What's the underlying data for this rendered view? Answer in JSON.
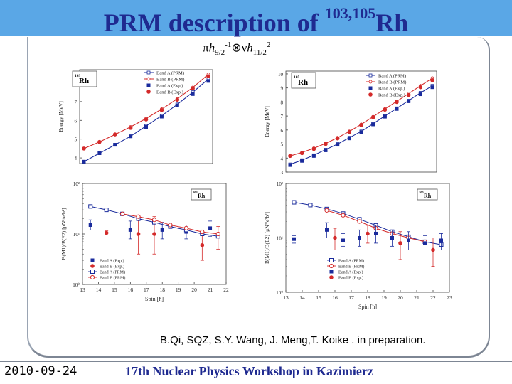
{
  "slide": {
    "title_main": "PRM description of ",
    "title_sup": "103,105",
    "title_end": "Rh",
    "formula": {
      "pi": "π",
      "h1": "h",
      "sub1": "9/2",
      "sup1": "-1",
      "otimes": "⊗",
      "nu": "ν",
      "h2": "h",
      "sub2": "11/2",
      "sup2": "2"
    },
    "citation": "B.Qi, SQZ, S.Y. Wang, J. Meng,T. Koike . in preparation.",
    "date": "2010-09-24",
    "footer": "17th Nuclear Physics Workshop in Kazimierz"
  },
  "colors": {
    "band_a": "#1a2b9c",
    "band_b": "#d42a2a",
    "title": "#1f2a90",
    "topbar": "#5aa7e6"
  },
  "chart_data": [
    {
      "type": "line",
      "nucleus_mass": "103",
      "nucleus": "Rh",
      "xlabel": "",
      "ylabel": "Energy [MeV]",
      "ylim": [
        3.7,
        8.7
      ],
      "yticks": [
        4,
        5,
        6,
        7,
        8
      ],
      "x": [
        1,
        2,
        3,
        4,
        5,
        6,
        7,
        8,
        9
      ],
      "legend": [
        "Band A (PRM)",
        "Band B (PRM)",
        "Band A (Exp.)",
        "Band B (Exp.)"
      ],
      "legend_position": "top-right",
      "series": [
        {
          "name": "Band A (PRM)",
          "kind": "line",
          "color": "#1a2b9c",
          "values": [
            3.8,
            4.25,
            4.7,
            5.15,
            5.7,
            6.25,
            6.85,
            7.5,
            8.2
          ]
        },
        {
          "name": "Band B (PRM)",
          "kind": "line",
          "color": "#d42a2a",
          "values": [
            4.5,
            4.85,
            5.25,
            5.65,
            6.1,
            6.6,
            7.15,
            7.75,
            8.45
          ]
        },
        {
          "name": "Band A (Exp.)",
          "kind": "square",
          "color": "#1a2b9c",
          "values": [
            3.8,
            4.25,
            4.7,
            5.15,
            5.65,
            6.2,
            6.8,
            7.4,
            8.1
          ]
        },
        {
          "name": "Band B (Exp.)",
          "kind": "circle",
          "color": "#d42a2a",
          "values": [
            4.5,
            4.85,
            5.25,
            5.6,
            6.05,
            6.55,
            7.1,
            7.7,
            8.35
          ]
        }
      ]
    },
    {
      "type": "line",
      "nucleus_mass": "105",
      "nucleus": "Rh",
      "xlabel": "",
      "ylabel": "Energy [MeV]",
      "ylim": [
        3,
        10.2
      ],
      "yticks": [
        3,
        4,
        5,
        6,
        7,
        8,
        9,
        10
      ],
      "x": [
        1,
        2,
        3,
        4,
        5,
        6,
        7,
        8,
        9,
        10,
        11,
        12,
        13
      ],
      "legend": [
        "Band A (PRM)",
        "Band B (PRM)",
        "Band A (Exp.)",
        "Band B (Exp.)"
      ],
      "legend_position": "top-right",
      "series": [
        {
          "name": "Band A (PRM)",
          "kind": "line",
          "color": "#1a2b9c",
          "values": [
            3.55,
            3.85,
            4.2,
            4.6,
            5.0,
            5.45,
            5.9,
            6.45,
            7.0,
            7.55,
            8.1,
            8.65,
            9.15
          ]
        },
        {
          "name": "Band B (PRM)",
          "kind": "line",
          "color": "#d42a2a",
          "values": [
            4.15,
            4.4,
            4.7,
            5.05,
            5.45,
            5.9,
            6.4,
            6.95,
            7.5,
            8.05,
            8.6,
            9.15,
            9.7
          ]
        },
        {
          "name": "Band A (Exp.)",
          "kind": "square",
          "color": "#1a2b9c",
          "values": [
            3.5,
            3.8,
            4.15,
            4.55,
            4.95,
            5.4,
            5.85,
            6.4,
            6.95,
            7.5,
            8.05,
            8.55,
            9.05
          ]
        },
        {
          "name": "Band B (Exp.)",
          "kind": "circle",
          "color": "#d42a2a",
          "values": [
            4.15,
            4.35,
            4.65,
            5.0,
            5.4,
            5.85,
            6.35,
            6.9,
            7.45,
            8.0,
            8.5,
            9.05,
            9.55
          ]
        }
      ]
    },
    {
      "type": "line",
      "nucleus_mass": "103",
      "nucleus": "Rh",
      "xlabel": "Spin [ħ]",
      "ylabel": "B(M1)/B(E2) [μN²/e²b²]",
      "yscale": "log",
      "ylim": [
        1,
        100
      ],
      "ytick_labels": [
        "10²",
        "10¹",
        "10⁰"
      ],
      "xlim": [
        13,
        22
      ],
      "xticks": [
        13,
        14,
        15,
        16,
        17,
        18,
        19,
        20,
        21,
        22
      ],
      "legend": [
        "Band A (Exp.)",
        "Band B (Exp.)",
        "Band A (PRM)",
        "Band B (PRM)"
      ],
      "legend_position": "bottom-left",
      "series": [
        {
          "name": "Band A (Exp.)",
          "kind": "square_err",
          "color": "#1a2b9c",
          "points": [
            {
              "x": 13.5,
              "y": 15,
              "lo": 12,
              "hi": 19
            },
            {
              "x": 16,
              "y": 12,
              "lo": 8,
              "hi": 18
            },
            {
              "x": 18,
              "y": 12,
              "lo": 8,
              "hi": 17
            },
            {
              "x": 19.5,
              "y": 11,
              "lo": 8,
              "hi": 15
            },
            {
              "x": 21,
              "y": 13,
              "lo": 9,
              "hi": 18
            }
          ]
        },
        {
          "name": "Band B (Exp.)",
          "kind": "circle_err",
          "color": "#d42a2a",
          "points": [
            {
              "x": 14.5,
              "y": 10.5,
              "lo": 9.5,
              "hi": 11.5
            },
            {
              "x": 16.5,
              "y": 10,
              "lo": 4,
              "hi": 20
            },
            {
              "x": 17.5,
              "y": 10,
              "lo": 4,
              "hi": 22
            },
            {
              "x": 20.5,
              "y": 6,
              "lo": 3,
              "hi": 12
            },
            {
              "x": 21.5,
              "y": 9,
              "lo": 5,
              "hi": 14
            }
          ]
        },
        {
          "name": "Band A (PRM)",
          "kind": "open_square_line",
          "color": "#1a2b9c",
          "points": [
            {
              "x": 13.5,
              "y": 35
            },
            {
              "x": 14.5,
              "y": 30
            },
            {
              "x": 15.5,
              "y": 25
            },
            {
              "x": 16.5,
              "y": 20
            },
            {
              "x": 17.5,
              "y": 17
            },
            {
              "x": 18.5,
              "y": 14
            },
            {
              "x": 19.5,
              "y": 12
            },
            {
              "x": 20.5,
              "y": 10
            },
            {
              "x": 21.5,
              "y": 9
            }
          ]
        },
        {
          "name": "Band B (PRM)",
          "kind": "open_circle_line",
          "color": "#d42a2a",
          "points": [
            {
              "x": 15.5,
              "y": 25
            },
            {
              "x": 16.5,
              "y": 22
            },
            {
              "x": 17.5,
              "y": 19
            },
            {
              "x": 18.5,
              "y": 15
            },
            {
              "x": 19.5,
              "y": 13
            },
            {
              "x": 20.5,
              "y": 11
            },
            {
              "x": 21.5,
              "y": 10
            }
          ]
        }
      ]
    },
    {
      "type": "line",
      "nucleus_mass": "105",
      "nucleus": "Rh",
      "xlabel": "Spin [ħ]",
      "ylabel": "B(M1)/B(E2) [μN²/e²b²]",
      "yscale": "log",
      "ylim": [
        1,
        100
      ],
      "ytick_labels": [
        "10²",
        "10¹",
        "10⁰"
      ],
      "xlim": [
        13,
        23
      ],
      "xticks": [
        13,
        14,
        15,
        16,
        17,
        18,
        19,
        20,
        21,
        22,
        23
      ],
      "legend": [
        "Band A (PRM)",
        "Band B (PRM)",
        "Band A (Exp.)",
        "Band B (Exp.)"
      ],
      "legend_position": "bottom-right",
      "series": [
        {
          "name": "Band A (PRM)",
          "kind": "open_square_line",
          "color": "#1a2b9c",
          "points": [
            {
              "x": 13.5,
              "y": 45
            },
            {
              "x": 14.5,
              "y": 40
            },
            {
              "x": 15.5,
              "y": 34
            },
            {
              "x": 16.5,
              "y": 28
            },
            {
              "x": 17.5,
              "y": 22
            },
            {
              "x": 18.5,
              "y": 17
            },
            {
              "x": 19.5,
              "y": 13
            },
            {
              "x": 20.5,
              "y": 10.5
            },
            {
              "x": 21.5,
              "y": 8.5
            },
            {
              "x": 22.5,
              "y": 7.5
            }
          ]
        },
        {
          "name": "Band B (PRM)",
          "kind": "open_circle_line",
          "color": "#d42a2a",
          "points": [
            {
              "x": 15.5,
              "y": 32
            },
            {
              "x": 16.5,
              "y": 26
            },
            {
              "x": 17.5,
              "y": 20
            },
            {
              "x": 18.5,
              "y": 15
            },
            {
              "x": 19.5,
              "y": 12
            },
            {
              "x": 20.5,
              "y": 10
            },
            {
              "x": 21.5,
              "y": 8.5
            }
          ]
        },
        {
          "name": "Band A (Exp.)",
          "kind": "square_err",
          "color": "#1a2b9c",
          "points": [
            {
              "x": 13.5,
              "y": 9.5,
              "lo": 8,
              "hi": 11
            },
            {
              "x": 15.5,
              "y": 14,
              "lo": 10,
              "hi": 19
            },
            {
              "x": 16.5,
              "y": 9,
              "lo": 7,
              "hi": 12
            },
            {
              "x": 17.5,
              "y": 10,
              "lo": 7,
              "hi": 14
            },
            {
              "x": 18.5,
              "y": 12,
              "lo": 8,
              "hi": 17
            },
            {
              "x": 19.5,
              "y": 10,
              "lo": 7,
              "hi": 14
            },
            {
              "x": 20.5,
              "y": 9,
              "lo": 6,
              "hi": 13
            },
            {
              "x": 21.5,
              "y": 8,
              "lo": 6,
              "hi": 11
            },
            {
              "x": 22.5,
              "y": 9,
              "lo": 6,
              "hi": 12
            }
          ]
        },
        {
          "name": "Band B (Exp.)",
          "kind": "circle_err",
          "color": "#d42a2a",
          "points": [
            {
              "x": 16,
              "y": 10,
              "lo": 6,
              "hi": 15
            },
            {
              "x": 18,
              "y": 12,
              "lo": 8,
              "hi": 17
            },
            {
              "x": 20,
              "y": 8,
              "lo": 4,
              "hi": 13
            },
            {
              "x": 22,
              "y": 6,
              "lo": 3,
              "hi": 10
            }
          ]
        }
      ]
    }
  ]
}
